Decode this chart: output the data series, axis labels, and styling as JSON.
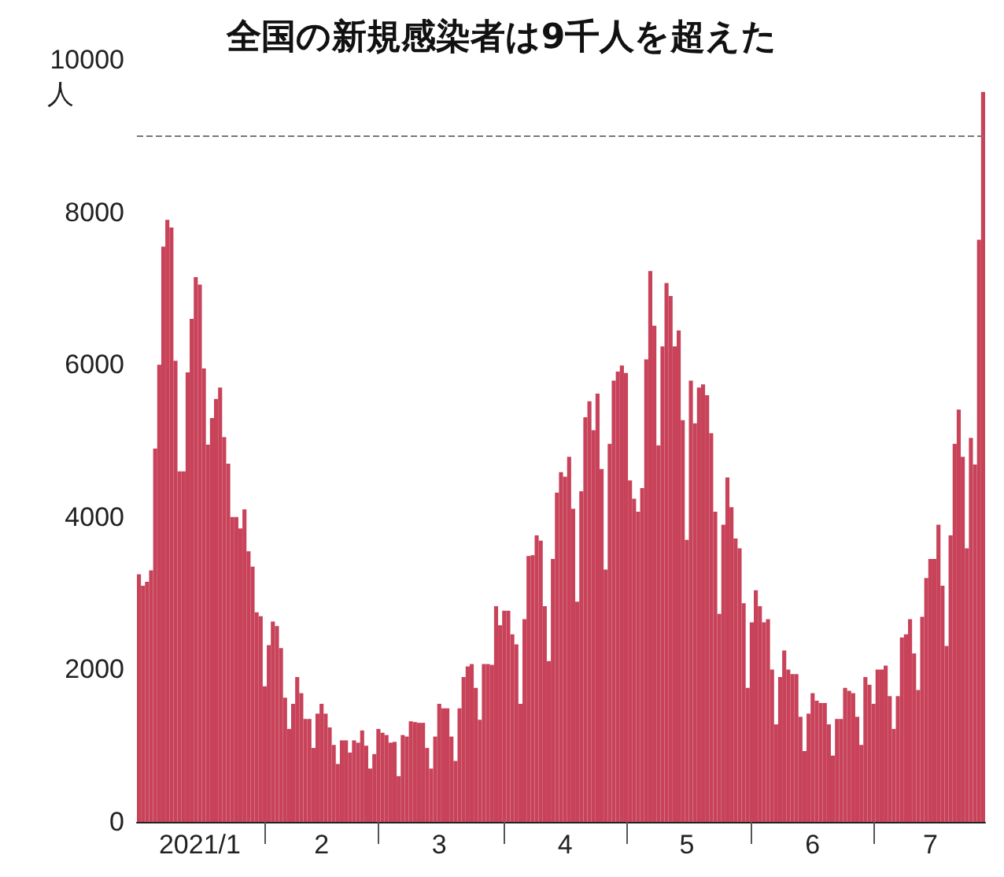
{
  "chart_data": {
    "type": "bar",
    "title": "全国の新規感染者は9千人を超えた",
    "ylabel": "人",
    "color": "#c8435a",
    "x": [
      "2021-01-01",
      "2021-01-02",
      "2021-01-03",
      "2021-01-04",
      "2021-01-05",
      "2021-01-06",
      "2021-01-07",
      "2021-01-08",
      "2021-01-09",
      "2021-01-10",
      "2021-01-11",
      "2021-01-12",
      "2021-01-13",
      "2021-01-14",
      "2021-01-15",
      "2021-01-16",
      "2021-01-17",
      "2021-01-18",
      "2021-01-19",
      "2021-01-20",
      "2021-01-21",
      "2021-01-22",
      "2021-01-23",
      "2021-01-24",
      "2021-01-25",
      "2021-01-26",
      "2021-01-27",
      "2021-01-28",
      "2021-01-29",
      "2021-01-30",
      "2021-01-31",
      "2021-02-01",
      "2021-02-02",
      "2021-02-03",
      "2021-02-04",
      "2021-02-05",
      "2021-02-06",
      "2021-02-07",
      "2021-02-08",
      "2021-02-09",
      "2021-02-10",
      "2021-02-11",
      "2021-02-12",
      "2021-02-13",
      "2021-02-14",
      "2021-02-15",
      "2021-02-16",
      "2021-02-17",
      "2021-02-18",
      "2021-02-19",
      "2021-02-20",
      "2021-02-21",
      "2021-02-22",
      "2021-02-23",
      "2021-02-24",
      "2021-02-25",
      "2021-02-26",
      "2021-02-27",
      "2021-02-28",
      "2021-03-01",
      "2021-03-02",
      "2021-03-03",
      "2021-03-04",
      "2021-03-05",
      "2021-03-06",
      "2021-03-07",
      "2021-03-08",
      "2021-03-09",
      "2021-03-10",
      "2021-03-11",
      "2021-03-12",
      "2021-03-13",
      "2021-03-14",
      "2021-03-15",
      "2021-03-16",
      "2021-03-17",
      "2021-03-18",
      "2021-03-19",
      "2021-03-20",
      "2021-03-21",
      "2021-03-22",
      "2021-03-23",
      "2021-03-24",
      "2021-03-25",
      "2021-03-26",
      "2021-03-27",
      "2021-03-28",
      "2021-03-29",
      "2021-03-30",
      "2021-03-31",
      "2021-04-01",
      "2021-04-02",
      "2021-04-03",
      "2021-04-04",
      "2021-04-05",
      "2021-04-06",
      "2021-04-07",
      "2021-04-08",
      "2021-04-09",
      "2021-04-10",
      "2021-04-11",
      "2021-04-12",
      "2021-04-13",
      "2021-04-14",
      "2021-04-15",
      "2021-04-16",
      "2021-04-17",
      "2021-04-18",
      "2021-04-19",
      "2021-04-20",
      "2021-04-21",
      "2021-04-22",
      "2021-04-23",
      "2021-04-24",
      "2021-04-25",
      "2021-04-26",
      "2021-04-27",
      "2021-04-28",
      "2021-04-29",
      "2021-04-30",
      "2021-05-01",
      "2021-05-02",
      "2021-05-03",
      "2021-05-04",
      "2021-05-05",
      "2021-05-06",
      "2021-05-07",
      "2021-05-08",
      "2021-05-09",
      "2021-05-10",
      "2021-05-11",
      "2021-05-12",
      "2021-05-13",
      "2021-05-14",
      "2021-05-15",
      "2021-05-16",
      "2021-05-17",
      "2021-05-18",
      "2021-05-19",
      "2021-05-20",
      "2021-05-21",
      "2021-05-22",
      "2021-05-23",
      "2021-05-24",
      "2021-05-25",
      "2021-05-26",
      "2021-05-27",
      "2021-05-28",
      "2021-05-29",
      "2021-05-30",
      "2021-05-31",
      "2021-06-01",
      "2021-06-02",
      "2021-06-03",
      "2021-06-04",
      "2021-06-05",
      "2021-06-06",
      "2021-06-07",
      "2021-06-08",
      "2021-06-09",
      "2021-06-10",
      "2021-06-11",
      "2021-06-12",
      "2021-06-13",
      "2021-06-14",
      "2021-06-15",
      "2021-06-16",
      "2021-06-17",
      "2021-06-18",
      "2021-06-19",
      "2021-06-20",
      "2021-06-21",
      "2021-06-22",
      "2021-06-23",
      "2021-06-24",
      "2021-06-25",
      "2021-06-26",
      "2021-06-27",
      "2021-06-28",
      "2021-06-29",
      "2021-06-30",
      "2021-07-01",
      "2021-07-02",
      "2021-07-03",
      "2021-07-04",
      "2021-07-05",
      "2021-07-06",
      "2021-07-07",
      "2021-07-08",
      "2021-07-09",
      "2021-07-10",
      "2021-07-11",
      "2021-07-12",
      "2021-07-13",
      "2021-07-14",
      "2021-07-15",
      "2021-07-16",
      "2021-07-17",
      "2021-07-18",
      "2021-07-19",
      "2021-07-20",
      "2021-07-21",
      "2021-07-22",
      "2021-07-23",
      "2021-07-24",
      "2021-07-25",
      "2021-07-26",
      "2021-07-27",
      "2021-07-28"
    ],
    "values": [
      3250,
      3100,
      3150,
      3300,
      4900,
      6000,
      7550,
      7900,
      7800,
      6050,
      4600,
      4600,
      5900,
      6600,
      7150,
      7050,
      5950,
      4950,
      5300,
      5550,
      5700,
      5050,
      4700,
      4000,
      4000,
      3850,
      4100,
      3550,
      3350,
      2750,
      2700,
      1780,
      2320,
      2630,
      2570,
      2280,
      1630,
      1220,
      1550,
      1900,
      1690,
      1350,
      1350,
      970,
      1420,
      1550,
      1420,
      1240,
      1010,
      760,
      1070,
      1070,
      910,
      1070,
      1040,
      1200,
      1000,
      700,
      890,
      1220,
      1170,
      1140,
      1040,
      1050,
      600,
      1140,
      1120,
      1320,
      1310,
      1300,
      1300,
      970,
      700,
      1120,
      1550,
      1490,
      1490,
      1120,
      800,
      1490,
      1900,
      2040,
      2070,
      1760,
      1340,
      2070,
      2070,
      2060,
      2830,
      2580,
      2770,
      2770,
      2460,
      2330,
      1550,
      2660,
      3490,
      3500,
      3760,
      3690,
      2830,
      2110,
      3450,
      4320,
      4590,
      4530,
      4790,
      4110,
      2890,
      4340,
      5310,
      5520,
      5140,
      5620,
      4630,
      3310,
      4960,
      5790,
      5910,
      5990,
      5890,
      4480,
      4240,
      4070,
      4380,
      6070,
      7230,
      6510,
      4940,
      6240,
      7070,
      6900,
      6240,
      6450,
      5270,
      3700,
      5790,
      5230,
      5700,
      5740,
      5600,
      5100,
      4070,
      2730,
      3900,
      4520,
      4130,
      3720,
      3590,
      2870,
      1760,
      2620,
      3040,
      2830,
      2620,
      2660,
      2000,
      1280,
      1900,
      2250,
      2000,
      1940,
      1940,
      1380,
      930,
      1420,
      1690,
      1590,
      1560,
      1560,
      1280,
      870,
      1350,
      1350,
      1760,
      1720,
      1690,
      1380,
      1010,
      1900,
      1800,
      1550,
      2000,
      2000,
      2050,
      1650,
      1220,
      1650,
      2420,
      2460,
      2660,
      2210,
      1730,
      2690,
      3200,
      3450,
      3450,
      3900,
      3100,
      2310,
      3760,
      4960,
      5410,
      4790,
      3590,
      5040,
      4690,
      7640,
      9580
    ],
    "xticks": [
      {
        "value": "2021-01-16",
        "label": "2021/1"
      },
      {
        "value": "2021-02-01",
        "label": null
      },
      {
        "value": "2021-02-15",
        "label": "2"
      },
      {
        "value": "2021-03-01",
        "label": null
      },
      {
        "value": "2021-03-16",
        "label": "3"
      },
      {
        "value": "2021-04-01",
        "label": null
      },
      {
        "value": "2021-04-16",
        "label": "4"
      },
      {
        "value": "2021-05-01",
        "label": null
      },
      {
        "value": "2021-05-16",
        "label": "5"
      },
      {
        "value": "2021-06-01",
        "label": null
      },
      {
        "value": "2021-06-16",
        "label": "6"
      },
      {
        "value": "2021-07-01",
        "label": null
      },
      {
        "value": "2021-07-15",
        "label": "7"
      }
    ],
    "ylim": [
      0,
      10000
    ],
    "yticks": [
      0,
      2000,
      4000,
      6000,
      8000,
      10000
    ],
    "ref_lines": [
      {
        "axis": "y",
        "value": 9000,
        "color": "#777777",
        "line_style": "dashed"
      }
    ],
    "xlim": [
      "2020-12-31T12:00",
      "2021-07-28T12:00"
    ],
    "grid": false
  }
}
